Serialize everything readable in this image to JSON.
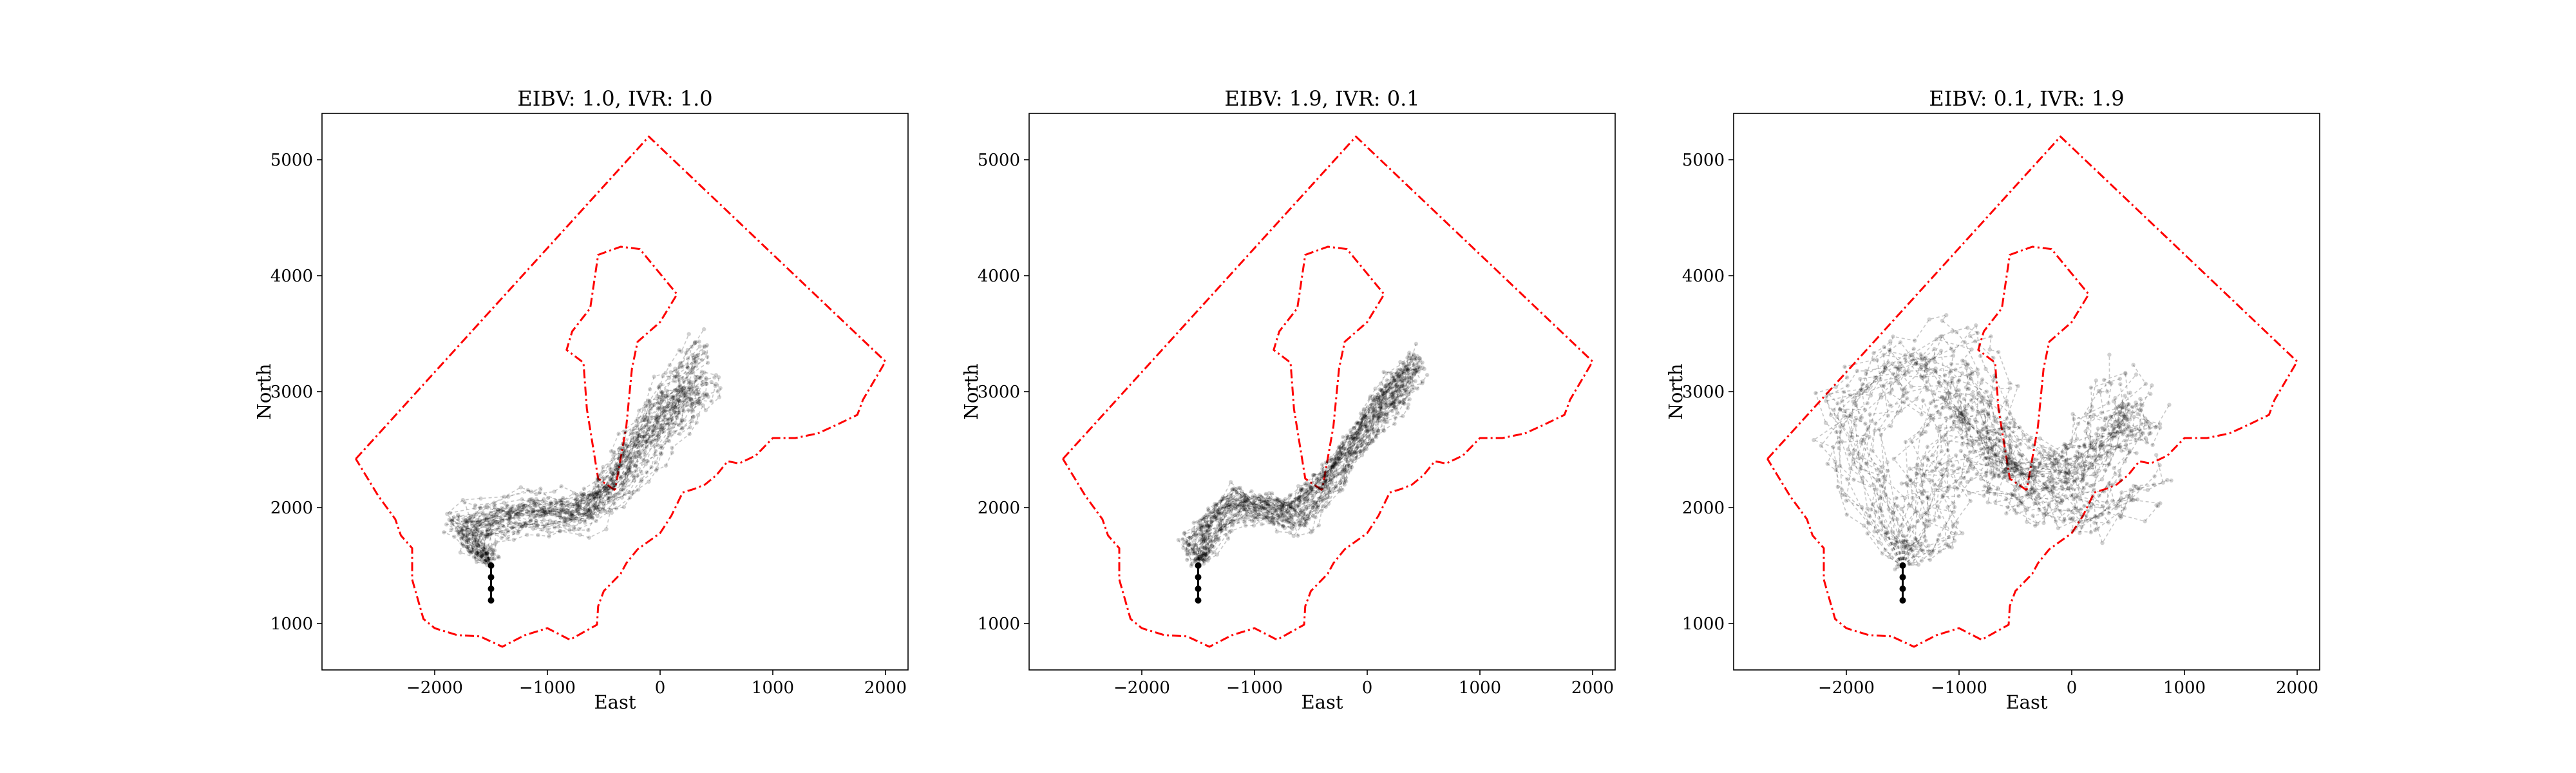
{
  "chart_data": [
    {
      "type": "line",
      "title": "EIBV: 1.0, IVR: 1.0",
      "xlabel": "East",
      "ylabel": "North",
      "xlim": [
        -3000,
        2200
      ],
      "ylim": [
        600,
        5400
      ],
      "xticks": [
        -2000,
        -1000,
        0,
        1000,
        2000
      ],
      "yticks": [
        1000,
        2000,
        3000,
        4000,
        5000
      ],
      "xtick_labels": [
        "−2000",
        "−1000",
        "0",
        "1000",
        "2000"
      ],
      "ytick_labels": [
        "1000",
        "2000",
        "3000",
        "4000",
        "5000"
      ],
      "grid": false,
      "legend": "none",
      "start": [
        [
          -1500,
          1200
        ],
        [
          -1500,
          1300
        ],
        [
          -1500,
          1400
        ],
        [
          -1500,
          1500
        ]
      ],
      "spread": 110,
      "paths": 40,
      "routes": [
        [
          [
            -1500,
            1500
          ],
          [
            -1700,
            1800
          ],
          [
            -1300,
            1950
          ],
          [
            -800,
            1950
          ],
          [
            -500,
            2100
          ],
          [
            -200,
            2500
          ],
          [
            100,
            2800
          ],
          [
            300,
            3000
          ]
        ],
        [
          [
            -1500,
            1500
          ],
          [
            -1600,
            1750
          ],
          [
            -1200,
            1900
          ],
          [
            -700,
            1900
          ],
          [
            -300,
            2200
          ],
          [
            0,
            2600
          ],
          [
            250,
            2900
          ],
          [
            450,
            3100
          ]
        ],
        [
          [
            -1500,
            1500
          ],
          [
            -1800,
            1900
          ],
          [
            -1100,
            2050
          ],
          [
            -600,
            2000
          ],
          [
            -350,
            2350
          ],
          [
            -100,
            2800
          ],
          [
            150,
            3100
          ],
          [
            400,
            3400
          ]
        ]
      ]
    },
    {
      "type": "line",
      "title": "EIBV: 1.9, IVR: 0.1",
      "xlabel": "East",
      "ylabel": "North",
      "xlim": [
        -3000,
        2200
      ],
      "ylim": [
        600,
        5400
      ],
      "xticks": [
        -2000,
        -1000,
        0,
        1000,
        2000
      ],
      "yticks": [
        1000,
        2000,
        3000,
        4000,
        5000
      ],
      "xtick_labels": [
        "−2000",
        "−1000",
        "0",
        "1000",
        "2000"
      ],
      "ytick_labels": [
        "1000",
        "2000",
        "3000",
        "4000",
        "5000"
      ],
      "grid": false,
      "legend": "none",
      "start": [
        [
          -1500,
          1200
        ],
        [
          -1500,
          1300
        ],
        [
          -1500,
          1400
        ],
        [
          -1500,
          1500
        ]
      ],
      "spread": 100,
      "paths": 40,
      "routes": [
        [
          [
            -1500,
            1500
          ],
          [
            -1400,
            1800
          ],
          [
            -1100,
            2050
          ],
          [
            -700,
            1900
          ],
          [
            -400,
            2150
          ],
          [
            -100,
            2500
          ],
          [
            150,
            2850
          ],
          [
            350,
            3000
          ]
        ],
        [
          [
            -1500,
            1500
          ],
          [
            -1300,
            1900
          ],
          [
            -900,
            2000
          ],
          [
            -600,
            1850
          ],
          [
            -300,
            2300
          ],
          [
            0,
            2700
          ],
          [
            250,
            3000
          ],
          [
            400,
            3200
          ]
        ],
        [
          [
            -1500,
            1500
          ],
          [
            -1550,
            1750
          ],
          [
            -1150,
            2100
          ],
          [
            -750,
            1950
          ],
          [
            -350,
            2250
          ],
          [
            -50,
            2650
          ],
          [
            200,
            3050
          ],
          [
            450,
            3300
          ]
        ]
      ]
    },
    {
      "type": "line",
      "title": "EIBV: 0.1, IVR: 1.9",
      "xlabel": "East",
      "ylabel": "North",
      "xlim": [
        -3000,
        2200
      ],
      "ylim": [
        600,
        5400
      ],
      "xticks": [
        -2000,
        -1000,
        0,
        1000,
        2000
      ],
      "yticks": [
        1000,
        2000,
        3000,
        4000,
        5000
      ],
      "xtick_labels": [
        "−2000",
        "−1000",
        "0",
        "1000",
        "2000"
      ],
      "ytick_labels": [
        "1000",
        "2000",
        "3000",
        "4000",
        "5000"
      ],
      "grid": false,
      "legend": "none",
      "start": [
        [
          -1500,
          1200
        ],
        [
          -1500,
          1300
        ],
        [
          -1500,
          1400
        ],
        [
          -1500,
          1500
        ]
      ],
      "spread": 220,
      "paths": 40,
      "routes": [
        [
          [
            -1500,
            1500
          ],
          [
            -1800,
            2200
          ],
          [
            -2100,
            2800
          ],
          [
            -1600,
            3200
          ],
          [
            -1200,
            3000
          ],
          [
            -700,
            2600
          ],
          [
            -400,
            2200
          ],
          [
            0,
            2300
          ],
          [
            400,
            2600
          ],
          [
            700,
            2700
          ]
        ],
        [
          [
            -1500,
            1500
          ],
          [
            -1300,
            2100
          ],
          [
            -900,
            2500
          ],
          [
            -600,
            2300
          ],
          [
            -300,
            2100
          ],
          [
            100,
            2300
          ],
          [
            400,
            2700
          ],
          [
            600,
            2900
          ]
        ],
        [
          [
            -1500,
            1500
          ],
          [
            -1900,
            2600
          ],
          [
            -1500,
            3300
          ],
          [
            -1000,
            3500
          ],
          [
            -800,
            3000
          ],
          [
            -500,
            2500
          ],
          [
            0,
            2100
          ],
          [
            300,
            2000
          ],
          [
            700,
            2300
          ]
        ],
        [
          [
            -1500,
            1500
          ],
          [
            -1100,
            1900
          ],
          [
            -1300,
            2500
          ],
          [
            -900,
            3100
          ],
          [
            -700,
            2700
          ],
          [
            -400,
            2400
          ],
          [
            200,
            2500
          ],
          [
            500,
            3200
          ]
        ]
      ]
    }
  ],
  "boundary": {
    "outer": [
      [
        -2700,
        2420
      ],
      [
        -100,
        5200
      ],
      [
        2000,
        3260
      ],
      [
        1800,
        2930
      ],
      [
        1750,
        2800
      ],
      [
        1580,
        2720
      ],
      [
        1400,
        2640
      ],
      [
        1200,
        2600
      ],
      [
        1000,
        2600
      ],
      [
        850,
        2450
      ],
      [
        700,
        2380
      ],
      [
        600,
        2400
      ],
      [
        500,
        2280
      ],
      [
        400,
        2200
      ],
      [
        300,
        2160
      ],
      [
        200,
        2130
      ],
      [
        100,
        1930
      ],
      [
        0,
        1780
      ],
      [
        -200,
        1640
      ],
      [
        -300,
        1520
      ],
      [
        -350,
        1430
      ],
      [
        -500,
        1280
      ],
      [
        -550,
        1150
      ],
      [
        -560,
        990
      ],
      [
        -800,
        860
      ],
      [
        -1000,
        960
      ],
      [
        -1200,
        900
      ],
      [
        -1400,
        800
      ],
      [
        -1600,
        890
      ],
      [
        -1800,
        900
      ],
      [
        -2000,
        960
      ],
      [
        -2100,
        1040
      ],
      [
        -2200,
        1380
      ],
      [
        -2200,
        1650
      ],
      [
        -2300,
        1760
      ],
      [
        -2350,
        1900
      ],
      [
        -2500,
        2100
      ],
      [
        -2700,
        2420
      ]
    ],
    "inner": [
      [
        -400,
        2150
      ],
      [
        -550,
        2250
      ],
      [
        -650,
        2850
      ],
      [
        -680,
        3250
      ],
      [
        -830,
        3360
      ],
      [
        -780,
        3520
      ],
      [
        -620,
        3720
      ],
      [
        -550,
        4180
      ],
      [
        -350,
        4250
      ],
      [
        -180,
        4230
      ],
      [
        150,
        3840
      ],
      [
        0,
        3600
      ],
      [
        -200,
        3430
      ],
      [
        -250,
        3200
      ],
      [
        -300,
        2700
      ],
      [
        -400,
        2150
      ]
    ]
  }
}
